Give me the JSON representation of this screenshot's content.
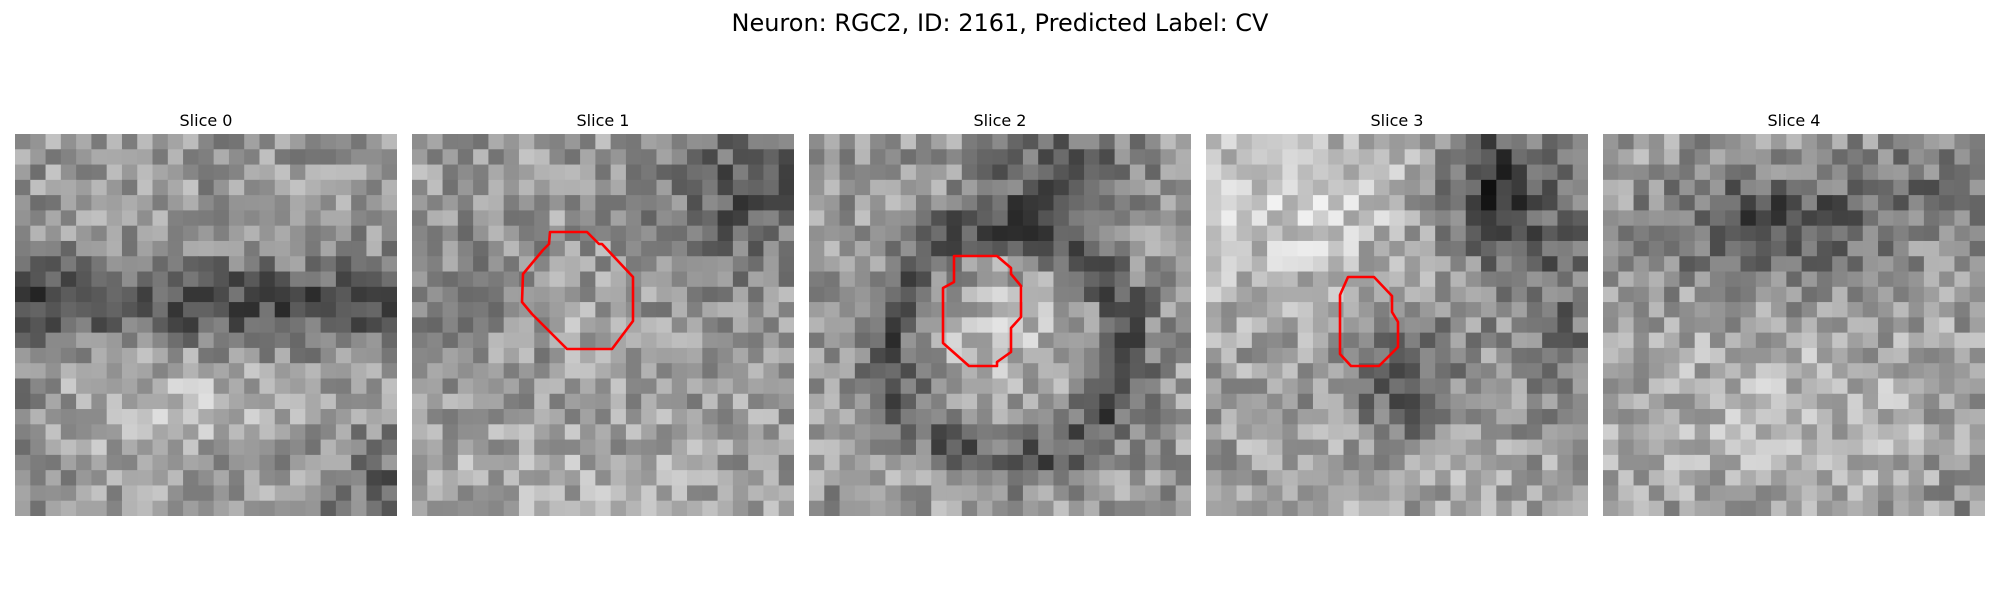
{
  "figure": {
    "title": "Neuron: RGC2, ID: 2161, Predicted Label: CV"
  },
  "colors": {
    "contour": "#ff0000",
    "background": "#ffffff"
  },
  "image_grid_cells": 25,
  "slices": [
    {
      "title": "Slice 0",
      "has_contour": false,
      "texture": "horizontal dark band across middle, lighter lower area, dark bottom-right corner"
    },
    {
      "title": "Slice 1",
      "has_contour": true,
      "texture": "dark region top-right, lighter center inside contour"
    },
    {
      "title": "Slice 2",
      "has_contour": true,
      "texture": "dark ring around lighter center, dark top area"
    },
    {
      "title": "Slice 3",
      "has_contour": true,
      "texture": "light top-left, dark top-right corner, dark blob at contour"
    },
    {
      "title": "Slice 4",
      "has_contour": false,
      "texture": "dark cloud upper-center, lighter lower area"
    }
  ]
}
